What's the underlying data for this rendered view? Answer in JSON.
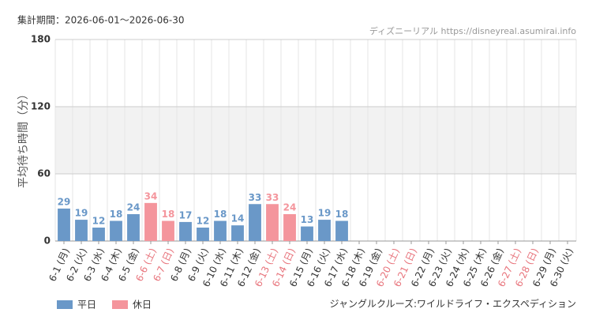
{
  "chart_data": {
    "type": "bar",
    "title": "集計期間：2026-06-01～2026-06-30",
    "source": "ディズニーリアル https://disneyreal.asumirai.info",
    "y_label": "平均待ち時間（分）",
    "footer": "ジャングルクルーズ:ワイルドライフ・エクスペディション",
    "categories": [
      "6-1 (月)",
      "6-2 (火)",
      "6-3 (水)",
      "6-4 (木)",
      "6-5 (金)",
      "6-6 (土)",
      "6-7 (日)",
      "6-8 (月)",
      "6-9 (火)",
      "6-10 (水)",
      "6-11 (木)",
      "6-12 (金)",
      "6-13 (土)",
      "6-14 (日)",
      "6-15 (月)",
      "6-16 (火)",
      "6-17 (水)",
      "6-18 (木)",
      "6-19 (金)",
      "6-20 (土)",
      "6-21 (日)",
      "6-22 (月)",
      "6-23 (火)",
      "6-24 (水)",
      "6-25 (木)",
      "6-26 (金)",
      "6-27 (土)",
      "6-28 (日)",
      "6-29 (月)",
      "6-30 (火)"
    ],
    "category_colors": [
      "#333",
      "#333",
      "#333",
      "#333",
      "#333",
      "#e8747c",
      "#e8747c",
      "#333",
      "#333",
      "#333",
      "#333",
      "#333",
      "#e8747c",
      "#e8747c",
      "#333",
      "#333",
      "#333",
      "#333",
      "#333",
      "#e8747c",
      "#e8747c",
      "#333",
      "#333",
      "#333",
      "#333",
      "#333",
      "#e8747c",
      "#e8747c",
      "#333",
      "#333"
    ],
    "series": [
      {
        "name": "平日",
        "color": "#6a98c8",
        "values": [
          29,
          19,
          12,
          18,
          24,
          null,
          null,
          17,
          12,
          18,
          14,
          33,
          null,
          null,
          13,
          19,
          18,
          null,
          null,
          null,
          null,
          null,
          null,
          null,
          null,
          null,
          null,
          null,
          null,
          null
        ]
      },
      {
        "name": "休日",
        "color": "#f4959c",
        "values": [
          null,
          null,
          null,
          null,
          null,
          34,
          18,
          null,
          null,
          null,
          null,
          null,
          33,
          24,
          null,
          null,
          null,
          null,
          null,
          null,
          null,
          null,
          null,
          null,
          null,
          null,
          null,
          null,
          null,
          null
        ]
      }
    ],
    "ylim": [
      0,
      180
    ],
    "yticks": [
      0,
      60,
      120,
      180
    ],
    "grid": true
  }
}
